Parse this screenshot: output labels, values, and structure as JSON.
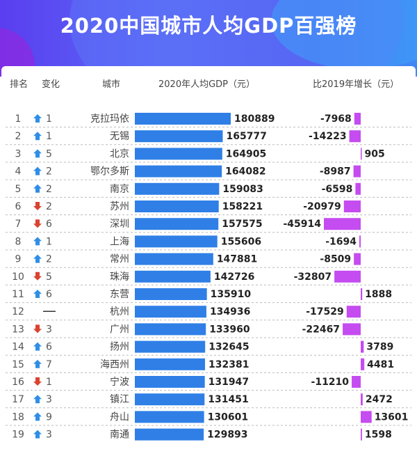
{
  "title": "2020中国城市人均GDP百强榜",
  "chart_data": {
    "type": "bar",
    "title": "2020中国城市人均GDP百强榜",
    "columns": [
      "排名",
      "变化",
      "城市",
      "2020年人均GDP（元）",
      "比2019年增长（元）"
    ],
    "colors": {
      "gdp": "#2f7fe6",
      "growth": "#c54cf0",
      "up": "#2f8ee6",
      "down": "#d9432f"
    },
    "rows": [
      {
        "rank": "1",
        "dir": "up",
        "change": "1",
        "city": "克拉玛依",
        "gdp": 180889,
        "growth": -7968
      },
      {
        "rank": "2",
        "dir": "up",
        "change": "1",
        "city": "无锡",
        "gdp": 165777,
        "growth": -14223
      },
      {
        "rank": "3",
        "dir": "up",
        "change": "5",
        "city": "北京",
        "gdp": 164905,
        "growth": 905
      },
      {
        "rank": "4",
        "dir": "up",
        "change": "2",
        "city": "鄂尔多斯",
        "gdp": 164082,
        "growth": -8987
      },
      {
        "rank": "5",
        "dir": "up",
        "change": "2",
        "city": "南京",
        "gdp": 159083,
        "growth": -6598
      },
      {
        "rank": "6",
        "dir": "down",
        "change": "2",
        "city": "苏州",
        "gdp": 158221,
        "growth": -20979
      },
      {
        "rank": "7",
        "dir": "down",
        "change": "6",
        "city": "深圳",
        "gdp": 157575,
        "growth": -45914
      },
      {
        "rank": "8",
        "dir": "up",
        "change": "1",
        "city": "上海",
        "gdp": 155606,
        "growth": -1694
      },
      {
        "rank": "9",
        "dir": "up",
        "change": "2",
        "city": "常州",
        "gdp": 147881,
        "growth": -8509
      },
      {
        "rank": "10",
        "dir": "down",
        "change": "5",
        "city": "珠海",
        "gdp": 142726,
        "growth": -32807
      },
      {
        "rank": "11",
        "dir": "up",
        "change": "6",
        "city": "东营",
        "gdp": 135910,
        "growth": 1888
      },
      {
        "rank": "12",
        "dir": "none",
        "change": "—",
        "city": "杭州",
        "gdp": 134936,
        "growth": -17529
      },
      {
        "rank": "13",
        "dir": "down",
        "change": "3",
        "city": "广州",
        "gdp": 133960,
        "growth": -22467
      },
      {
        "rank": "14",
        "dir": "up",
        "change": "6",
        "city": "扬州",
        "gdp": 132645,
        "growth": 3789
      },
      {
        "rank": "15",
        "dir": "up",
        "change": "7",
        "city": "海西州",
        "gdp": 132381,
        "growth": 4481
      },
      {
        "rank": "16",
        "dir": "down",
        "change": "1",
        "city": "宁波",
        "gdp": 131947,
        "growth": -11210
      },
      {
        "rank": "17",
        "dir": "up",
        "change": "3",
        "city": "镇江",
        "gdp": 131451,
        "growth": 2472
      },
      {
        "rank": "18",
        "dir": "up",
        "change": "9",
        "city": "舟山",
        "gdp": 130601,
        "growth": 13601
      },
      {
        "rank": "19",
        "dir": "up",
        "change": "3",
        "city": "南通",
        "gdp": 129893,
        "growth": 1598
      }
    ]
  }
}
